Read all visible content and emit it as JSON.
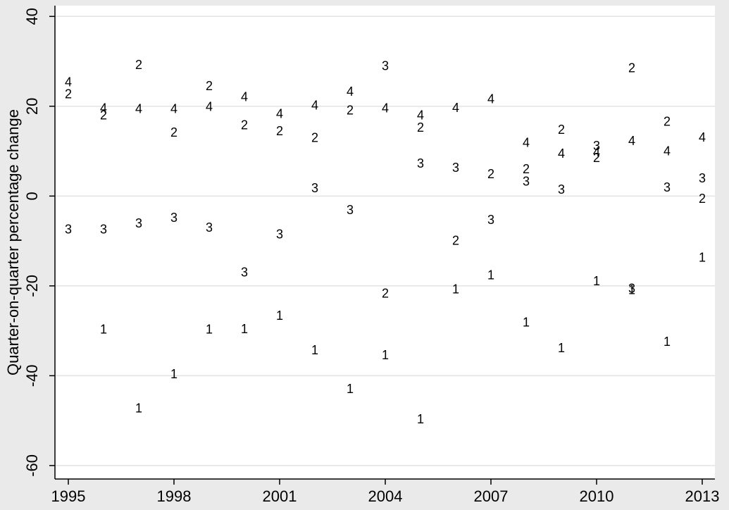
{
  "chart_data": {
    "type": "scatter",
    "y_label": "Quarter-on-quarter percentage change",
    "x": [
      1995,
      1996,
      1997,
      1998,
      1999,
      2000,
      2001,
      2002,
      2003,
      2004,
      2005,
      2006,
      2007,
      2008,
      2009,
      2010,
      2011,
      2012,
      2013
    ],
    "series": [
      {
        "name": "1",
        "color": "#000000",
        "values": [
          null,
          -29.9,
          -47.4,
          -39.8,
          -29.9,
          -29.8,
          -26.8,
          -34.5,
          -43.1,
          -35.6,
          -49.9,
          -20.9,
          -17.8,
          -28.3,
          -34.0,
          -19.1,
          -21.1,
          -32.6,
          -13.9
        ]
      },
      {
        "name": "2",
        "color": "#000000",
        "values": [
          22.5,
          17.8,
          29.0,
          14.0,
          24.3,
          15.6,
          14.3,
          12.8,
          18.9,
          -21.9,
          15.1,
          -10.1,
          4.7,
          5.8,
          14.6,
          8.3,
          28.3,
          16.4,
          -0.8
        ]
      },
      {
        "name": "3",
        "color": "#000000",
        "values": [
          -7.6,
          -7.6,
          -6.3,
          -5.0,
          -7.2,
          -17.2,
          -8.7,
          1.6,
          -3.3,
          28.8,
          7.1,
          6.1,
          -5.5,
          3.1,
          1.3,
          11.0,
          -20.8,
          1.7,
          3.8
        ]
      },
      {
        "name": "4",
        "color": "#000000",
        "values": [
          25.2,
          19.4,
          19.2,
          19.2,
          19.7,
          21.9,
          18.1,
          20.0,
          23.1,
          19.4,
          17.8,
          19.5,
          21.4,
          11.7,
          9.3,
          9.6,
          12.1,
          9.8,
          12.9
        ]
      }
    ],
    "xlim": [
      1994.62,
      2013.36
    ],
    "xticks": [
      1995,
      1998,
      2001,
      2004,
      2007,
      2010,
      2013
    ],
    "ylim": [
      -63,
      42.4
    ],
    "yticks": [
      -60,
      -40,
      -20,
      0,
      20,
      40
    ],
    "grid": true
  }
}
